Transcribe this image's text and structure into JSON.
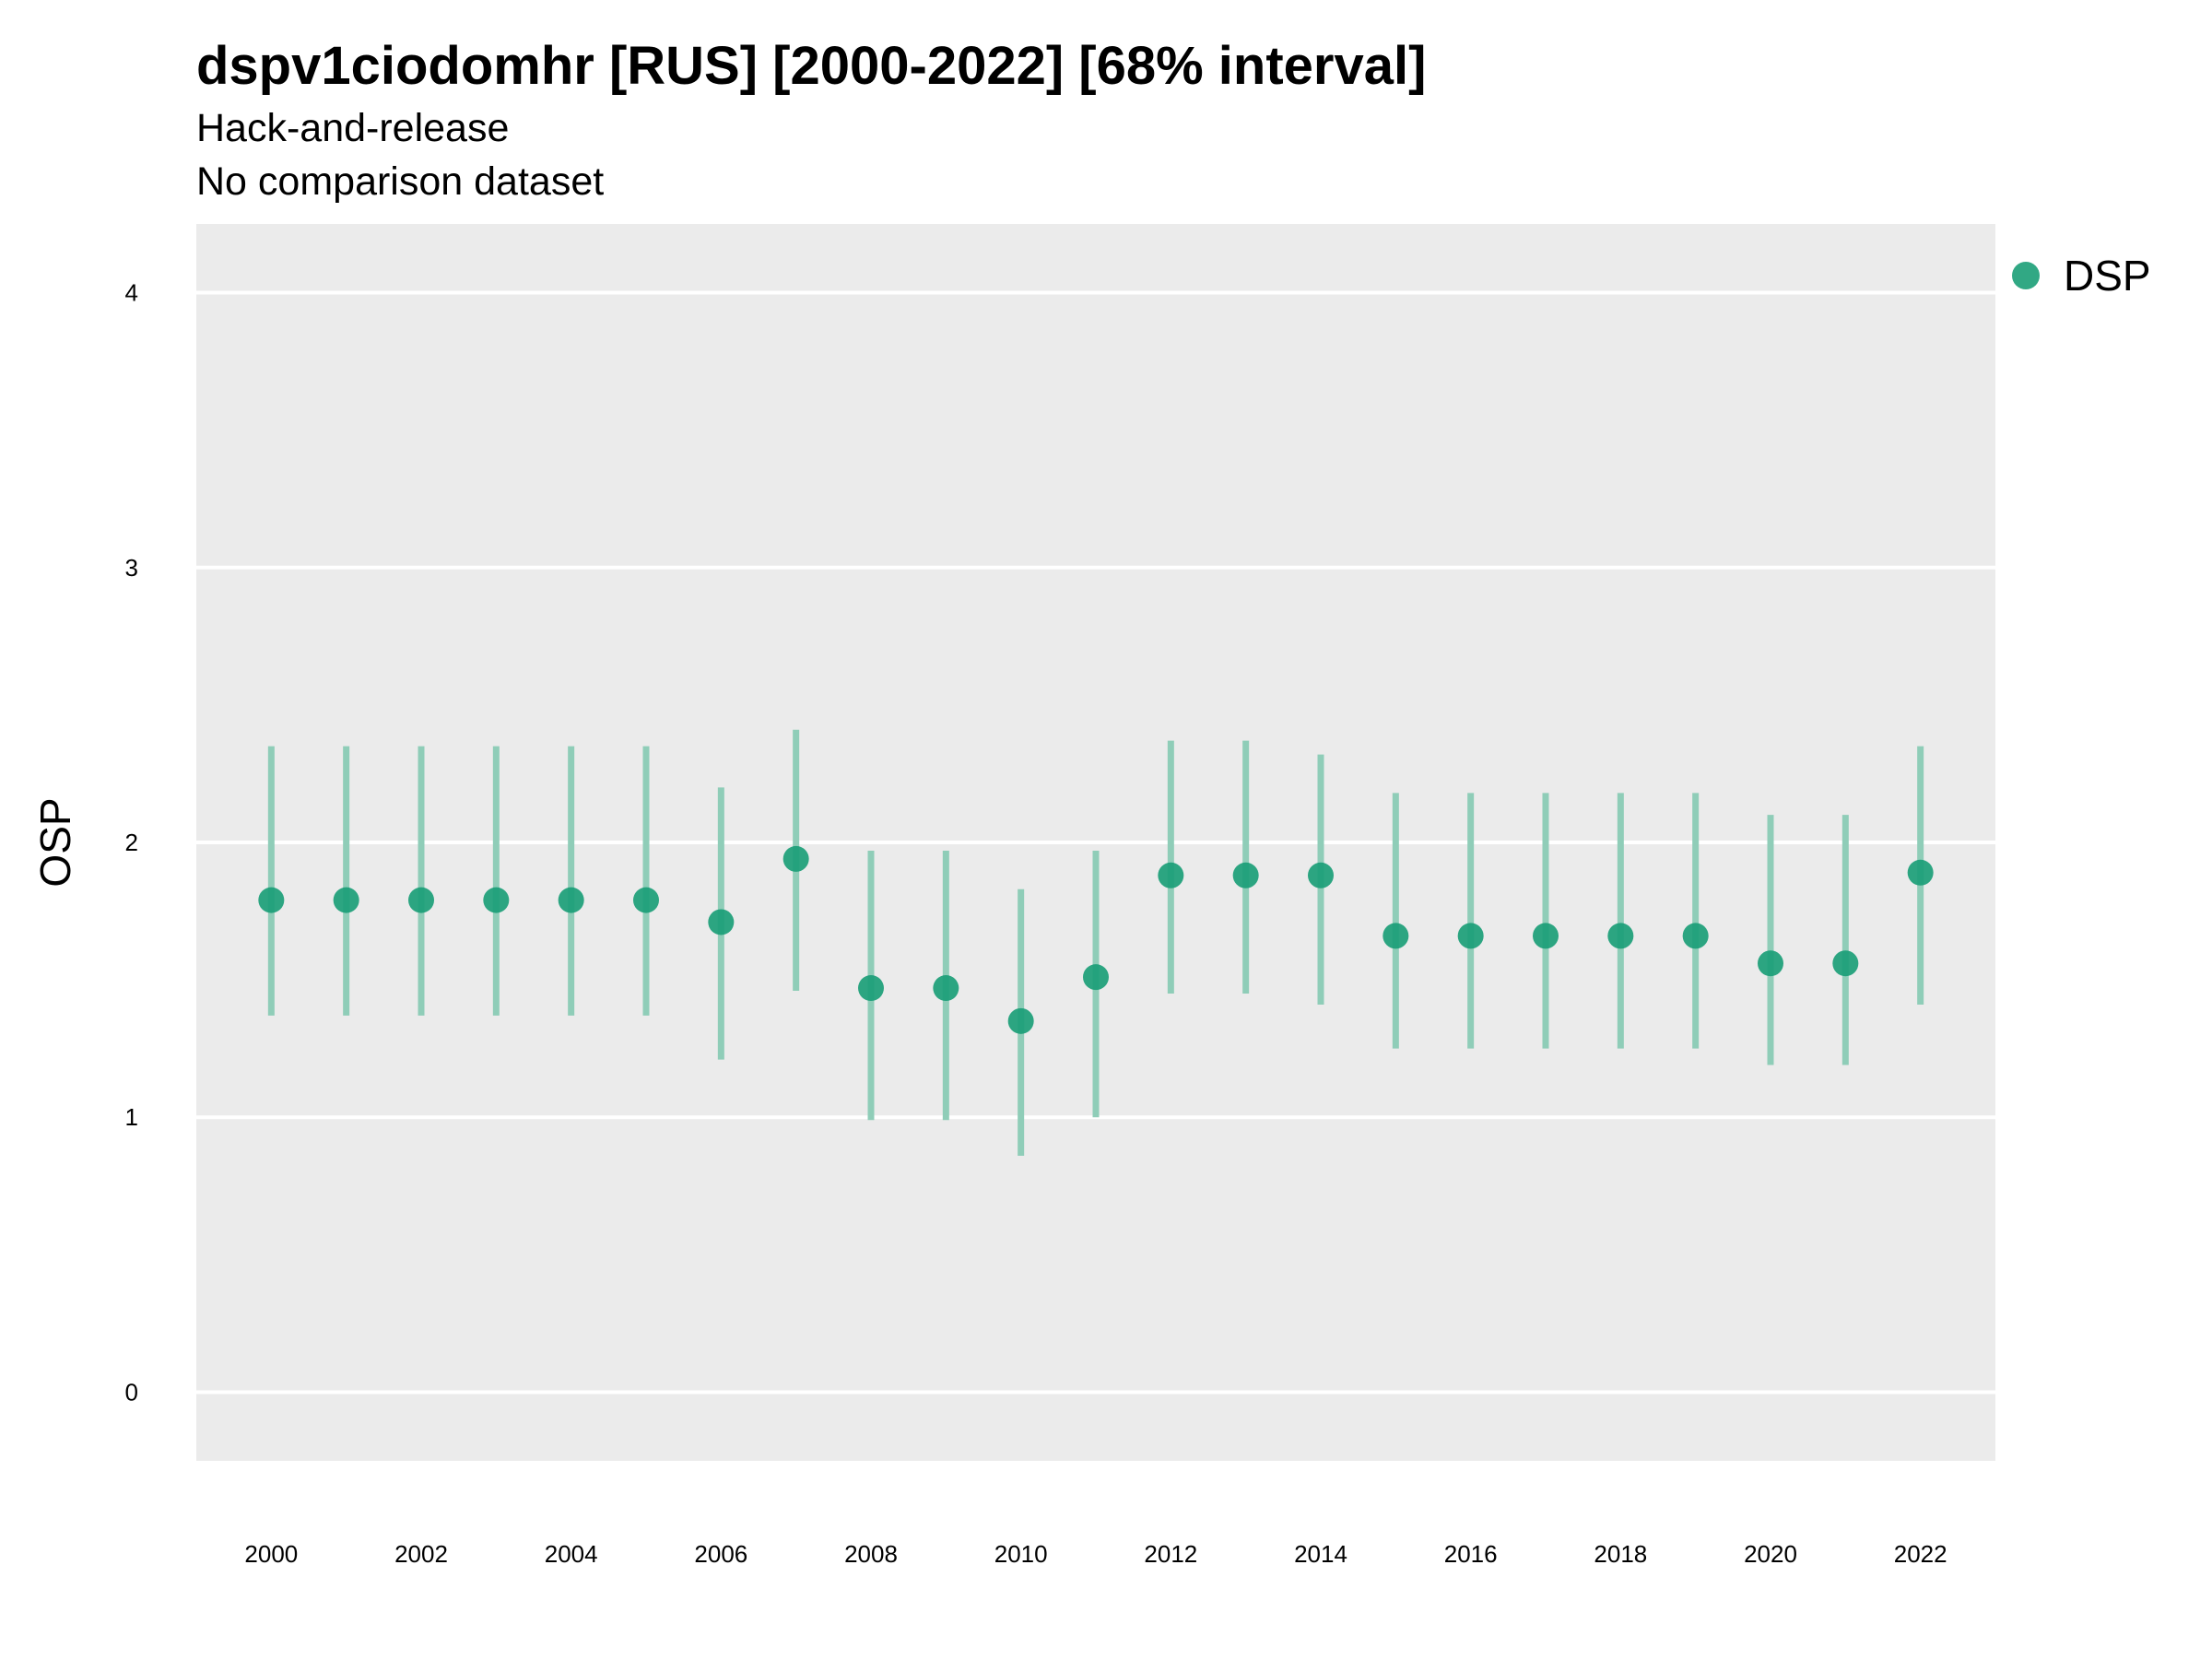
{
  "title": "dspv1ciodomhr [RUS] [2000-2022] [68% interval]",
  "subtitle_line1": "Hack-and-release",
  "subtitle_line2": "No comparison dataset",
  "colors": {
    "point": "#1b9e77",
    "interval": "#8fcdb8",
    "panel": "#ebebeb",
    "grid": "#ffffff"
  },
  "chart_data": {
    "type": "scatter",
    "xlabel": "",
    "ylabel": "OSP",
    "ylim": [
      -0.25,
      4.25
    ],
    "xlim": [
      1999,
      2023
    ],
    "y_ticks": [
      0,
      1,
      2,
      3,
      4
    ],
    "x_ticks": [
      2000,
      2002,
      2004,
      2006,
      2008,
      2010,
      2012,
      2014,
      2016,
      2018,
      2020,
      2022
    ],
    "grid": "horizontal-major",
    "legend_position": "right",
    "series": [
      {
        "name": "DSP",
        "x": [
          2000,
          2001,
          2002,
          2003,
          2004,
          2005,
          2006,
          2007,
          2008,
          2009,
          2010,
          2011,
          2012,
          2013,
          2014,
          2015,
          2016,
          2017,
          2018,
          2019,
          2020,
          2021,
          2022
        ],
        "y": [
          1.79,
          1.79,
          1.79,
          1.79,
          1.79,
          1.79,
          1.71,
          1.94,
          1.47,
          1.47,
          1.35,
          1.51,
          1.88,
          1.88,
          1.88,
          1.66,
          1.66,
          1.66,
          1.66,
          1.66,
          1.56,
          1.56,
          1.89
        ],
        "lower": [
          1.37,
          1.37,
          1.37,
          1.37,
          1.37,
          1.37,
          1.21,
          1.46,
          0.99,
          0.99,
          0.86,
          1.0,
          1.45,
          1.45,
          1.41,
          1.25,
          1.25,
          1.25,
          1.25,
          1.25,
          1.19,
          1.19,
          1.41
        ],
        "upper": [
          2.35,
          2.35,
          2.35,
          2.35,
          2.35,
          2.35,
          2.2,
          2.41,
          1.97,
          1.97,
          1.83,
          1.97,
          2.37,
          2.37,
          2.32,
          2.18,
          2.18,
          2.18,
          2.18,
          2.18,
          2.1,
          2.1,
          2.35
        ]
      }
    ]
  }
}
